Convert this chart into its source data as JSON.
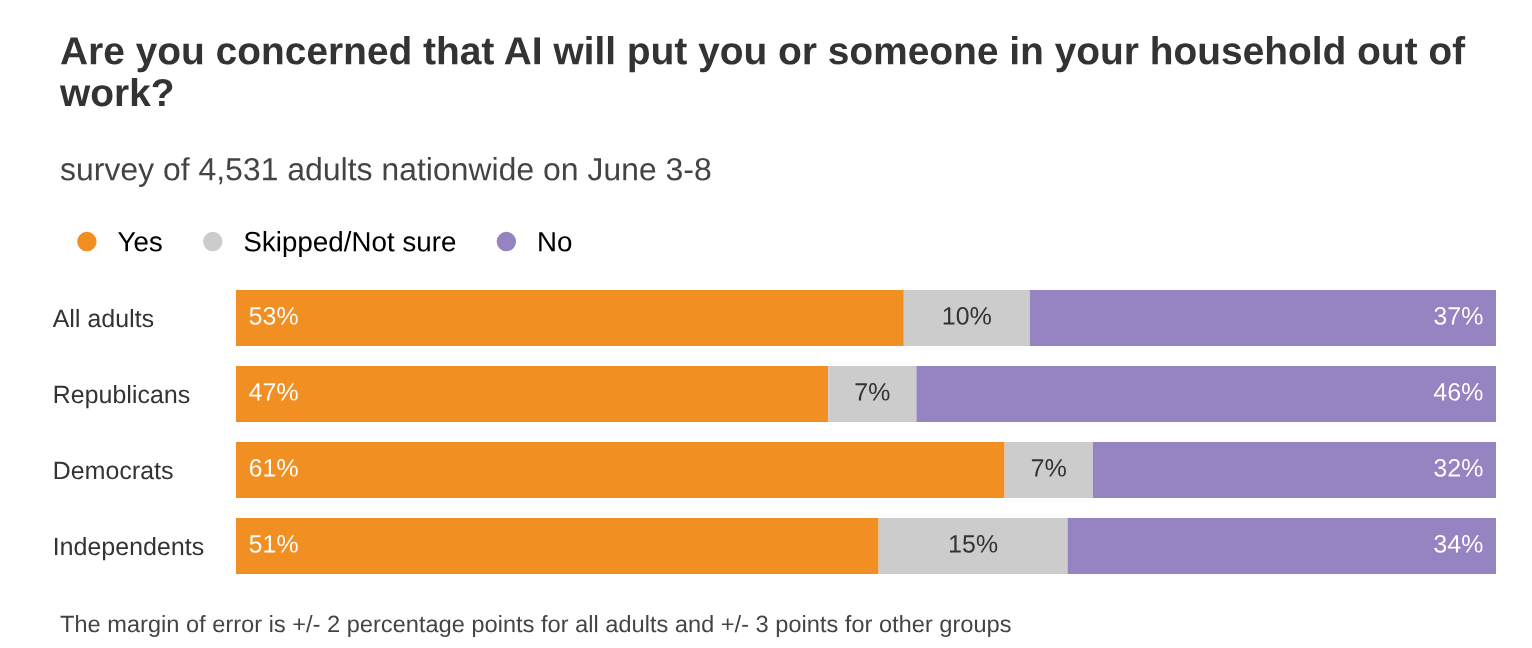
{
  "chart_data": {
    "type": "bar",
    "orientation": "horizontal",
    "stacked": true,
    "legend": "top left",
    "title": "Are you concerned that AI will put you or someone in your household out of work?",
    "subtitle": "survey of 4,531 adults nationwide on June 3-8",
    "categories": [
      "All adults",
      "Republicans",
      "Democrats",
      "Independents"
    ],
    "series": [
      {
        "name": "Yes",
        "color": "#f28f22",
        "values": [
          53,
          47,
          61,
          51
        ],
        "value_labels": [
          "53%",
          "47%",
          "61%",
          "51%"
        ]
      },
      {
        "name": "Skipped/Not sure",
        "color": "#cccccc",
        "values": [
          10,
          7,
          7,
          15
        ],
        "value_labels": [
          "10%",
          "7%",
          "7%",
          "15%"
        ]
      },
      {
        "name": "No",
        "color": "#9683c1",
        "values": [
          37,
          46,
          32,
          34
        ],
        "value_labels": [
          "37%",
          "46%",
          "32%",
          "34%"
        ]
      }
    ],
    "annotations": [
      "The margin of error is +/- 2 percentage points for all adults and +/- 3 points for other groups"
    ]
  }
}
